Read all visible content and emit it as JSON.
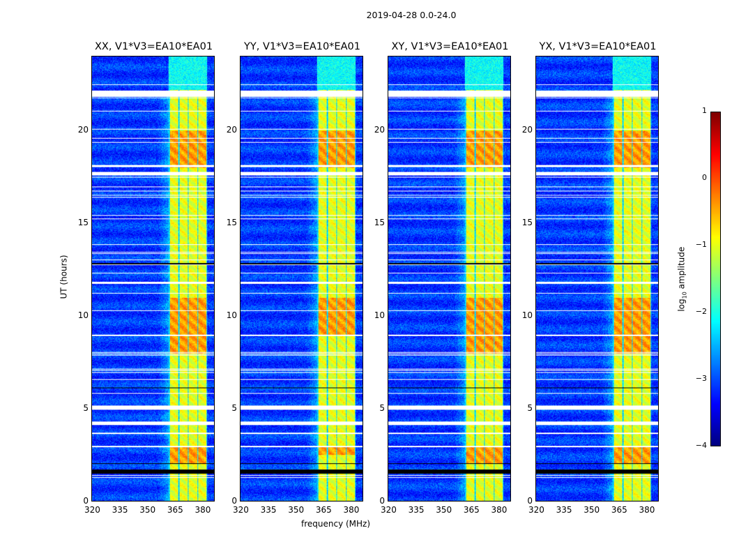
{
  "suptitle": "2019-04-28 0.0-24.0",
  "chart_data": {
    "type": "heatmap",
    "panels": [
      {
        "title": "XX, V1*V3=EA10*EA01",
        "peak_hours": [
          [
            18,
            20
          ],
          [
            8,
            11
          ],
          [
            2,
            3
          ]
        ]
      },
      {
        "title": "YY, V1*V3=EA10*EA01",
        "peak_hours": [
          [
            18,
            20
          ],
          [
            9,
            11
          ],
          [
            2.5,
            3
          ]
        ]
      },
      {
        "title": "XY, V1*V3=EA10*EA01",
        "peak_hours": [
          [
            18,
            20
          ],
          [
            8,
            11
          ],
          [
            2,
            3
          ]
        ]
      },
      {
        "title": "YX, V1*V3=EA10*EA01",
        "peak_hours": [
          [
            18,
            20
          ],
          [
            8,
            11
          ],
          [
            2,
            3
          ]
        ]
      }
    ],
    "xlabel": "frequency (MHz)",
    "ylabel": "UT (hours)",
    "xlim": [
      320,
      387
    ],
    "ylim": [
      0,
      24
    ],
    "xticks": [
      "320",
      "335",
      "350",
      "365",
      "380"
    ],
    "yticks": [
      "0",
      "5",
      "10",
      "15",
      "20"
    ],
    "signal_band_mhz": [
      362,
      383
    ],
    "flagged_hours": [
      [
        21.85,
        22.15
      ],
      [
        17.6,
        17.8
      ],
      [
        11.75,
        11.85
      ],
      [
        4.95,
        5.15
      ],
      [
        4.1,
        4.3
      ]
    ],
    "zero_hours": [
      [
        1.5,
        1.7
      ],
      [
        2.0,
        2.05
      ],
      [
        6.1,
        6.15
      ],
      [
        12.8,
        12.85
      ]
    ],
    "colorbar": {
      "label": "log10 amplitude",
      "label_base": "log",
      "label_sub": "10",
      "label_rest": " amplitude",
      "range": [
        -4,
        1
      ],
      "ticks": [
        "1",
        "0",
        "−1",
        "−2",
        "−3",
        "−4"
      ],
      "colormap": "jet"
    }
  }
}
